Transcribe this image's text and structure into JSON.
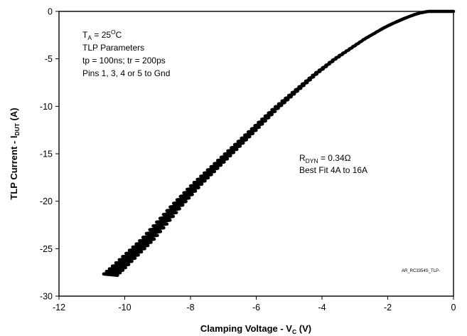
{
  "chart_data": {
    "type": "line",
    "xlabel": {
      "main": "Clamping Voltage - V",
      "sub": "C",
      "after": " (V)"
    },
    "ylabel": {
      "main": "TLP Current - I",
      "sub": "DUT",
      "after": " (A)"
    },
    "xlim": [
      -12,
      0
    ],
    "ylim": [
      -30,
      0
    ],
    "xticks": [
      -12,
      -10,
      -8,
      -6,
      -4,
      -2,
      0
    ],
    "yticks": [
      0,
      -5,
      -10,
      -15,
      -20,
      -25,
      -30
    ],
    "grid": false,
    "series": [
      {
        "values_note": "I-V curve",
        "x": [
          -10.45,
          -10.2,
          -9.9,
          -9.6,
          -9.3,
          -9.0,
          -8.7,
          -8.4,
          -8.1,
          -7.8,
          -7.5,
          -7.2,
          -6.9,
          -6.6,
          -6.3,
          -6.0,
          -5.7,
          -5.4,
          -5.1,
          -4.8,
          -4.5,
          -4.2,
          -3.9,
          -3.6,
          -3.3,
          -3.0,
          -2.7,
          -2.4,
          -2.1,
          -1.8,
          -1.5,
          -1.2,
          -1.0,
          -0.85,
          -0.75,
          -0.7
        ],
        "y": [
          -27.8,
          -27.0,
          -26.0,
          -25.0,
          -24.0,
          -22.8,
          -21.6,
          -20.4,
          -19.3,
          -18.2,
          -17.2,
          -16.2,
          -15.2,
          -14.2,
          -13.2,
          -12.2,
          -11.2,
          -10.2,
          -9.3,
          -8.4,
          -7.5,
          -6.6,
          -5.8,
          -5.0,
          -4.3,
          -3.6,
          -2.9,
          -2.3,
          -1.7,
          -1.2,
          -0.75,
          -0.35,
          -0.15,
          -0.05,
          0.0,
          0.0
        ]
      }
    ],
    "annotations": {
      "conditions": {
        "ta_prefix": "T",
        "ta_sub": "A",
        "ta_value": " = 25",
        "ta_sup": "O",
        "ta_unit": "C",
        "line2": "TLP Parameters",
        "line3": "tp = 100ns; tr = 200ps",
        "line4": "Pins 1, 3, 4 or 5 to Gnd"
      },
      "rdyn": {
        "prefix": "R",
        "sub": "DYN",
        "value": " = 0.34Ω",
        "line2": "Best Fit 4A to 16A"
      },
      "figure_id": "AR_RC3354S_TLP-"
    },
    "line_color": "#000000"
  }
}
